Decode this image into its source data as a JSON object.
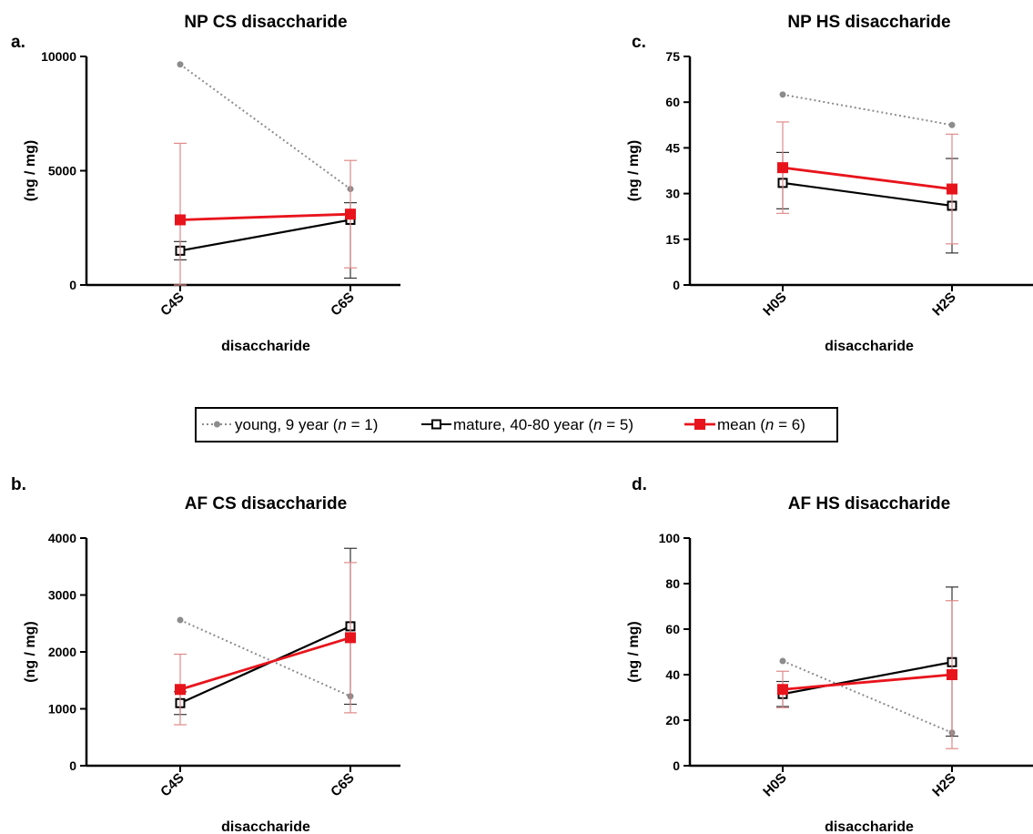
{
  "legend": {
    "placement": "center",
    "items": [
      {
        "pre": "young, 9 year (",
        "n": "n",
        "post": " = 1)",
        "color": "#8c8c8c",
        "style": "dotted",
        "marker": "circle"
      },
      {
        "pre": "mature, 40-80 year (",
        "n": "n",
        "post": " = 5)",
        "color": "#000000",
        "style": "solid",
        "marker": "open-square"
      },
      {
        "pre": "mean (",
        "n": "n",
        "post": " = 6)",
        "color": "#e8141c",
        "style": "solid",
        "marker": "filled-square"
      }
    ]
  },
  "colors": {
    "young": "#8c8c8c",
    "mature": "#000000",
    "mean": "#e8141c",
    "mean_error": "#e08a8a"
  },
  "chart_data": [
    {
      "type": "line",
      "panel": "a.",
      "title": "NP CS disaccharide",
      "xlabel": "disaccharide",
      "ylabel": "(ng / mg)",
      "categories": [
        "C4S",
        "C6S"
      ],
      "ylim": [
        0,
        10000
      ],
      "yticks": [
        "0",
        "5000",
        "10000"
      ],
      "series": [
        {
          "key": "young",
          "name": "young, 9 year (n = 1)",
          "values": [
            9650,
            4200
          ]
        },
        {
          "key": "mature",
          "name": "mature, 40-80 year (n = 5)",
          "values": [
            1500,
            2850
          ],
          "error": [
            [
              1100,
              1900
            ],
            [
              300,
              3600
            ]
          ]
        },
        {
          "key": "mean",
          "name": "mean (n = 6)",
          "values": [
            2850,
            3100
          ],
          "error": [
            [
              0,
              6200
            ],
            [
              750,
              5450
            ]
          ]
        }
      ]
    },
    {
      "type": "line",
      "panel": "b.",
      "title": "AF CS disaccharide",
      "xlabel": "disaccharide",
      "ylabel": "(ng / mg)",
      "categories": [
        "C4S",
        "C6S"
      ],
      "ylim": [
        0,
        4000
      ],
      "yticks": [
        "0",
        "1000",
        "2000",
        "3000",
        "4000"
      ],
      "series": [
        {
          "key": "young",
          "name": "young, 9 year (n = 1)",
          "values": [
            2560,
            1220
          ]
        },
        {
          "key": "mature",
          "name": "mature, 40-80 year (n = 5)",
          "values": [
            1100,
            2450
          ],
          "error": [
            [
              900,
              1300
            ],
            [
              1080,
              3820
            ]
          ]
        },
        {
          "key": "mean",
          "name": "mean (n = 6)",
          "values": [
            1340,
            2250
          ],
          "error": [
            [
              720,
              1960
            ],
            [
              930,
              3570
            ]
          ]
        }
      ]
    },
    {
      "type": "line",
      "panel": "c.",
      "title": "NP HS disaccharide",
      "xlabel": "disaccharide",
      "ylabel": "(ng / mg)",
      "categories": [
        "H0S",
        "H2S"
      ],
      "ylim": [
        0,
        75
      ],
      "yticks": [
        "0",
        "15",
        "30",
        "45",
        "60",
        "75"
      ],
      "series": [
        {
          "key": "young",
          "name": "young, 9 year (n = 1)",
          "values": [
            62.5,
            52.5
          ]
        },
        {
          "key": "mature",
          "name": "mature, 40-80 year (n = 5)",
          "values": [
            33.5,
            26
          ],
          "error": [
            [
              25,
              43.5
            ],
            [
              10.5,
              41.5
            ]
          ]
        },
        {
          "key": "mean",
          "name": "mean (n = 6)",
          "values": [
            38.5,
            31.5
          ],
          "error": [
            [
              23.5,
              53.5
            ],
            [
              13.5,
              49.5
            ]
          ]
        }
      ]
    },
    {
      "type": "line",
      "panel": "d.",
      "title": "AF HS disaccharide",
      "xlabel": "disaccharide",
      "ylabel": "(ng / mg)",
      "categories": [
        "H0S",
        "H2S"
      ],
      "ylim": [
        0,
        100
      ],
      "yticks": [
        "0",
        "20",
        "40",
        "60",
        "80",
        "100"
      ],
      "series": [
        {
          "key": "young",
          "name": "young, 9 year (n = 1)",
          "values": [
            46,
            14.5
          ]
        },
        {
          "key": "mature",
          "name": "mature, 40-80 year (n = 5)",
          "values": [
            31.5,
            45.5
          ],
          "error": [
            [
              26,
              37
            ],
            [
              13,
              78.5
            ]
          ]
        },
        {
          "key": "mean",
          "name": "mean (n = 6)",
          "values": [
            33.5,
            40
          ],
          "error": [
            [
              25.5,
              41.5
            ],
            [
              7.5,
              72.5
            ]
          ]
        }
      ]
    }
  ]
}
